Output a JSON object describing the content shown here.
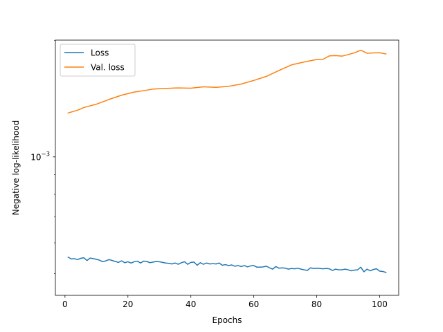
{
  "chart_data": {
    "type": "line",
    "title": "",
    "xlabel": "Epochs",
    "ylabel": "Negative log-likelihood",
    "yscale": "log",
    "xlim": [
      -3.05,
      106.05
    ],
    "ylim": [
      0.000439,
      0.002002
    ],
    "xticks": [
      0,
      20,
      40,
      60,
      80,
      100
    ],
    "xtick_labels": [
      "0",
      "20",
      "40",
      "60",
      "80",
      "100"
    ],
    "yticks": [
      0.001
    ],
    "ytick_labels": [
      {
        "base": "10",
        "exp": "−3"
      }
    ],
    "grid": false,
    "legend_position": "top-left",
    "series": [
      {
        "name": "Loss",
        "color": "#1f77b4",
        "x": [
          1,
          2,
          3,
          4,
          5,
          6,
          7,
          8,
          9,
          10,
          11,
          12,
          13,
          14,
          15,
          16,
          17,
          18,
          19,
          20,
          21,
          22,
          23,
          24,
          25,
          26,
          27,
          28,
          29,
          30,
          31,
          32,
          33,
          34,
          35,
          36,
          37,
          38,
          39,
          40,
          41,
          42,
          43,
          44,
          45,
          46,
          47,
          48,
          49,
          50,
          51,
          52,
          53,
          54,
          55,
          56,
          57,
          58,
          59,
          60,
          61,
          62,
          63,
          64,
          65,
          66,
          67,
          68,
          69,
          70,
          71,
          72,
          73,
          74,
          75,
          76,
          77,
          78,
          79,
          80,
          81,
          82,
          83,
          84,
          85,
          86,
          87,
          88,
          89,
          90,
          91,
          92,
          93,
          94,
          95,
          96,
          97,
          98,
          99,
          100,
          101,
          102
        ],
        "y": [
          0.000551,
          0.000545,
          0.000546,
          0.000543,
          0.000547,
          0.000549,
          0.00054,
          0.000548,
          0.000546,
          0.000544,
          0.000541,
          0.000536,
          0.000539,
          0.000543,
          0.00054,
          0.000537,
          0.000534,
          0.000539,
          0.000533,
          0.000536,
          0.000532,
          0.000536,
          0.000538,
          0.000532,
          0.000538,
          0.000537,
          0.000533,
          0.000535,
          0.000537,
          0.000536,
          0.000534,
          0.000532,
          0.000531,
          0.000529,
          0.000532,
          0.000528,
          0.000533,
          0.000536,
          0.000528,
          0.000534,
          0.000535,
          0.000525,
          0.000533,
          0.000528,
          0.000532,
          0.000529,
          0.00053,
          0.000529,
          0.000532,
          0.000525,
          0.000527,
          0.000524,
          0.000526,
          0.000522,
          0.000524,
          0.000521,
          0.000524,
          0.00052,
          0.000523,
          0.000524,
          0.000519,
          0.000519,
          0.00052,
          0.000522,
          0.000517,
          0.000513,
          0.000521,
          0.000516,
          0.000517,
          0.000516,
          0.000513,
          0.000515,
          0.000514,
          0.000516,
          0.000513,
          0.000511,
          0.000509,
          0.000517,
          0.000515,
          0.000516,
          0.000515,
          0.000514,
          0.000515,
          0.000514,
          0.000509,
          0.000513,
          0.000511,
          0.000511,
          0.000513,
          0.000511,
          0.000508,
          0.00051,
          0.000511,
          0.000519,
          0.000505,
          0.000513,
          0.000508,
          0.000512,
          0.000514,
          0.000507,
          0.000506,
          0.000503
        ]
      },
      {
        "name": "Val. loss",
        "color": "#ff7f0e",
        "x": [
          1,
          4,
          6,
          10,
          14,
          18,
          22,
          26,
          28,
          32,
          36,
          40,
          44,
          48,
          52,
          56,
          60,
          64,
          68,
          72,
          76,
          80,
          82,
          84,
          86,
          88,
          90,
          92,
          94,
          96,
          98,
          100,
          102
        ],
        "y": [
          0.001298,
          0.00132,
          0.001341,
          0.001368,
          0.001407,
          0.001443,
          0.00147,
          0.001487,
          0.001497,
          0.001502,
          0.001507,
          0.001504,
          0.001517,
          0.001512,
          0.001521,
          0.001542,
          0.001575,
          0.001614,
          0.001671,
          0.001728,
          0.001758,
          0.001784,
          0.001786,
          0.001823,
          0.001826,
          0.00182,
          0.001837,
          0.001857,
          0.001886,
          0.001852,
          0.001855,
          0.001857,
          0.001844
        ]
      }
    ]
  }
}
